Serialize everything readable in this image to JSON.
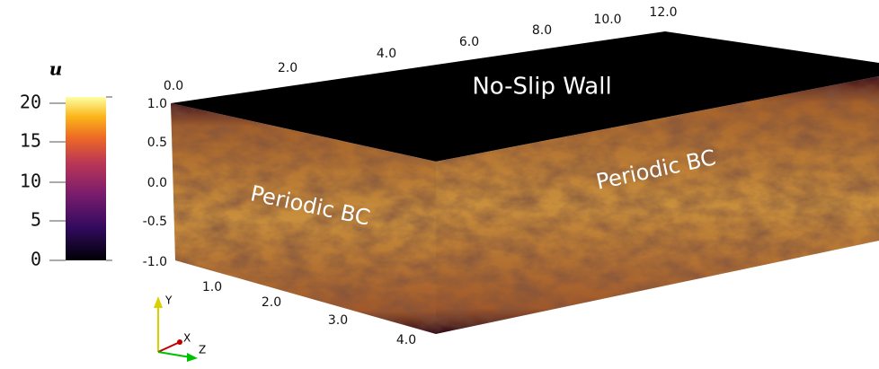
{
  "colorbar": {
    "label": "u",
    "ticks": [
      "20",
      "15",
      "10",
      "5",
      "0"
    ]
  },
  "axes": {
    "x_ticks": [
      "0.0",
      "2.0",
      "4.0",
      "6.0",
      "8.0",
      "10.0",
      "12.0"
    ],
    "y_ticks": [
      "1.0",
      "0.5",
      "0.0",
      "-0.5",
      "-1.0"
    ],
    "z_ticks": [
      "1.0",
      "2.0",
      "3.0",
      "4.0"
    ]
  },
  "annotations": {
    "top": "No-Slip Wall",
    "front": "Periodic BC",
    "side": "Periodic BC"
  },
  "triad": {
    "y": "Y",
    "x": "X",
    "z": "Z"
  }
}
